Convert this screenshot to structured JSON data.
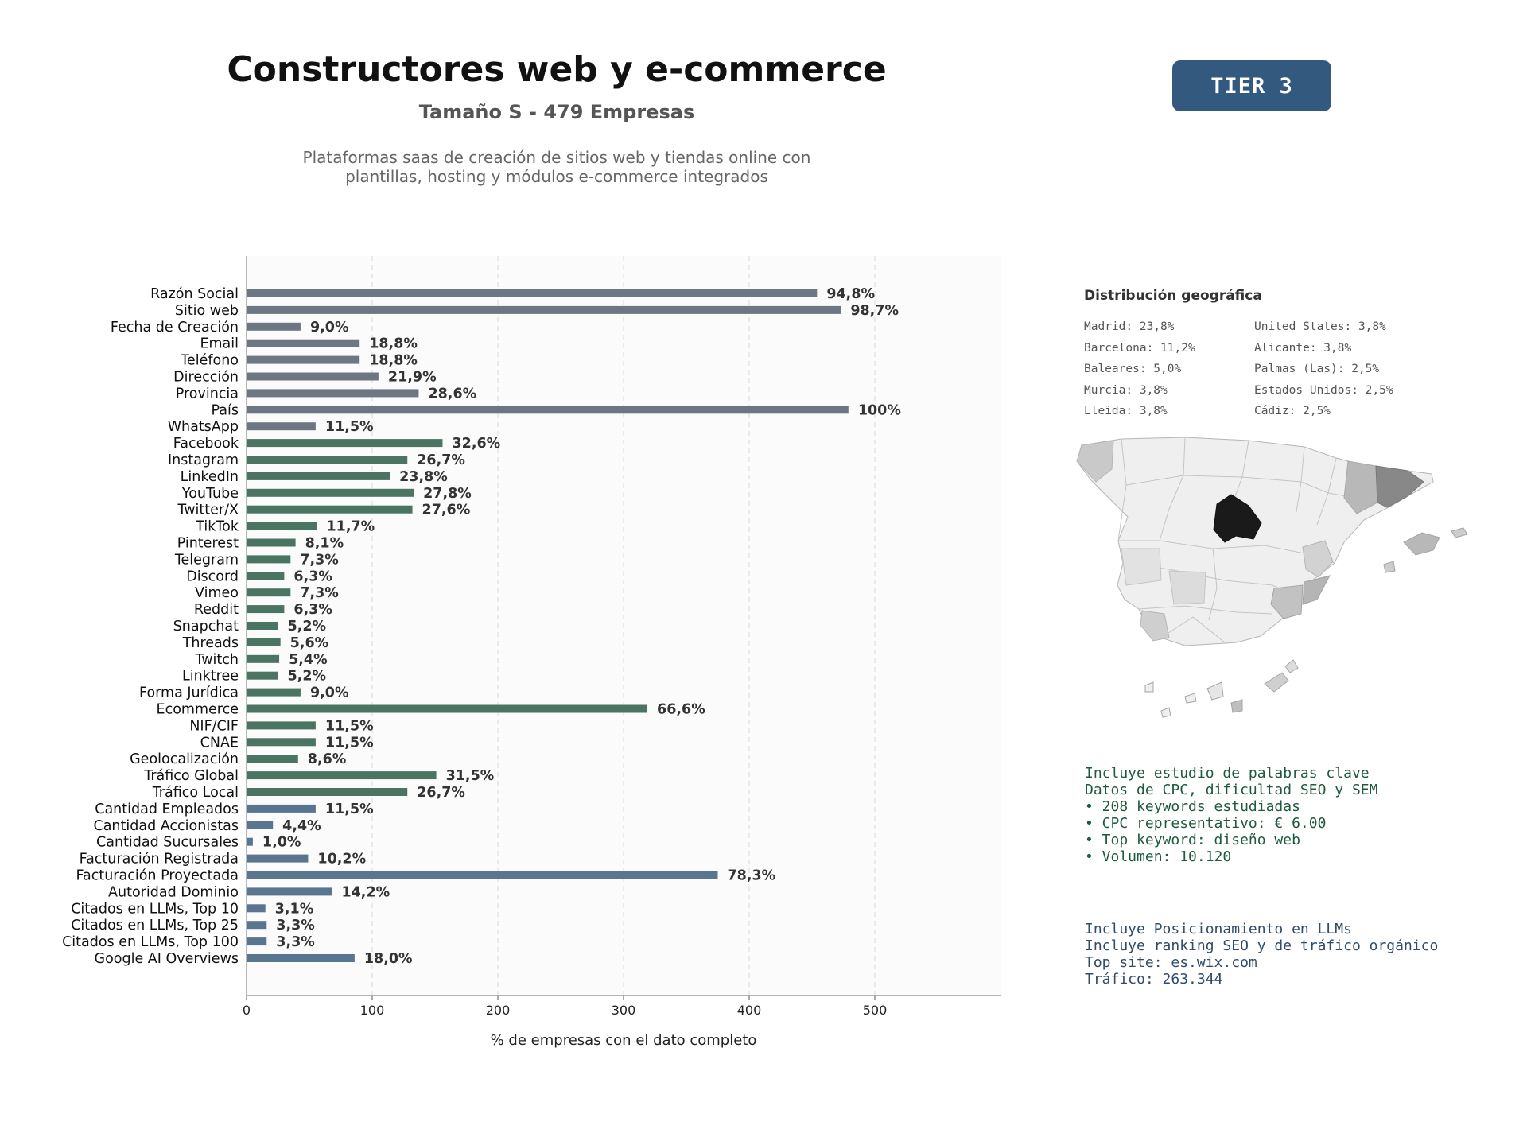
{
  "header": {
    "title": "Constructores web y e-commerce",
    "subtitle": "Tamaño S - 479 Empresas",
    "description_line1": "Plataformas saas de creación de sitios web y tiendas online con",
    "description_line2": "plantillas, hosting y módulos e-commerce integrados",
    "tier": "TIER 3"
  },
  "chart_data": {
    "type": "bar",
    "orientation": "horizontal",
    "xlabel": "% de empresas con el dato completo",
    "ylabel": "",
    "xlim": [
      0,
      600
    ],
    "xticks": [
      0,
      100,
      200,
      300,
      400,
      500
    ],
    "grid": "vertical dashed",
    "colors": {
      "base": "#6e7781",
      "social": "#4a7562",
      "financial": "#5a7590"
    },
    "categories": [
      "Razón Social",
      "Sitio web",
      "Fecha de Creación",
      "Email",
      "Teléfono",
      "Dirección",
      "Provincia",
      "País",
      "WhatsApp",
      "Facebook",
      "Instagram",
      "LinkedIn",
      "YouTube",
      "Twitter/X",
      "TikTok",
      "Pinterest",
      "Telegram",
      "Discord",
      "Vimeo",
      "Reddit",
      "Snapchat",
      "Threads",
      "Twitch",
      "Linktree",
      "Forma Jurídica",
      "Ecommerce",
      "NIF/CIF",
      "CNAE",
      "Geolocalización",
      "Tráfico Global",
      "Tráfico Local",
      "Cantidad Empleados",
      "Cantidad Accionistas",
      "Cantidad Sucursales",
      "Facturación Registrada",
      "Facturación Proyectada",
      "Autoridad Dominio",
      "Citados en LLMs, Top 10",
      "Citados en LLMs, Top 25",
      "Citados en LLMs, Top 100",
      "Google AI Overviews"
    ],
    "values": [
      454,
      473,
      43,
      90,
      90,
      105,
      137,
      479,
      55,
      156,
      128,
      114,
      133,
      132,
      56,
      39,
      35,
      30,
      35,
      30,
      25,
      27,
      26,
      25,
      43,
      319,
      55,
      55,
      41,
      151,
      128,
      55,
      21,
      5,
      49,
      375,
      68,
      15,
      16,
      16,
      86
    ],
    "labels": [
      "94,8%",
      "98,7%",
      "9,0%",
      "18,8%",
      "18,8%",
      "21,9%",
      "28,6%",
      "100%",
      "11,5%",
      "32,6%",
      "26,7%",
      "23,8%",
      "27,8%",
      "27,6%",
      "11,7%",
      "8,1%",
      "7,3%",
      "6,3%",
      "7,3%",
      "6,3%",
      "5,2%",
      "5,6%",
      "5,4%",
      "5,2%",
      "9,0%",
      "66,6%",
      "11,5%",
      "11,5%",
      "8,6%",
      "31,5%",
      "26,7%",
      "11,5%",
      "4,4%",
      "1,0%",
      "10,2%",
      "78,3%",
      "14,2%",
      "3,1%",
      "3,3%",
      "3,3%",
      "18,0%"
    ],
    "groups": [
      "base",
      "base",
      "base",
      "base",
      "base",
      "base",
      "base",
      "base",
      "base",
      "social",
      "social",
      "social",
      "social",
      "social",
      "social",
      "social",
      "social",
      "social",
      "social",
      "social",
      "social",
      "social",
      "social",
      "social",
      "social",
      "social",
      "social",
      "social",
      "social",
      "social",
      "social",
      "financial",
      "financial",
      "financial",
      "financial",
      "financial",
      "financial",
      "financial",
      "financial",
      "financial",
      "financial"
    ]
  },
  "geo": {
    "title": "Distribución geográfica",
    "col1": [
      "Madrid: 23,8%",
      "Barcelona: 11,2%",
      "Baleares: 5,0%",
      "Murcia: 3,8%",
      "Lleida: 3,8%"
    ],
    "col2": [
      "United States: 3,8%",
      "Alicante: 3,8%",
      "Palmas (Las): 2,5%",
      "Estados Unidos: 2,5%",
      "Cádiz: 2,5%"
    ]
  },
  "seo": {
    "lines": [
      "Incluye estudio de palabras clave",
      "Datos de CPC, dificultad SEO y SEM",
      "",
      "• 208 keywords estudiadas",
      "• CPC representativo: € 6.00",
      "• Top keyword: diseño web",
      "• Volumen: 10.120"
    ]
  },
  "llm": {
    "lines": [
      "Incluye Posicionamiento en LLMs",
      "Incluye ranking SEO y de tráfico orgánico",
      "",
      "Top site: es.wix.com",
      "Tráfico: 263.344"
    ]
  }
}
